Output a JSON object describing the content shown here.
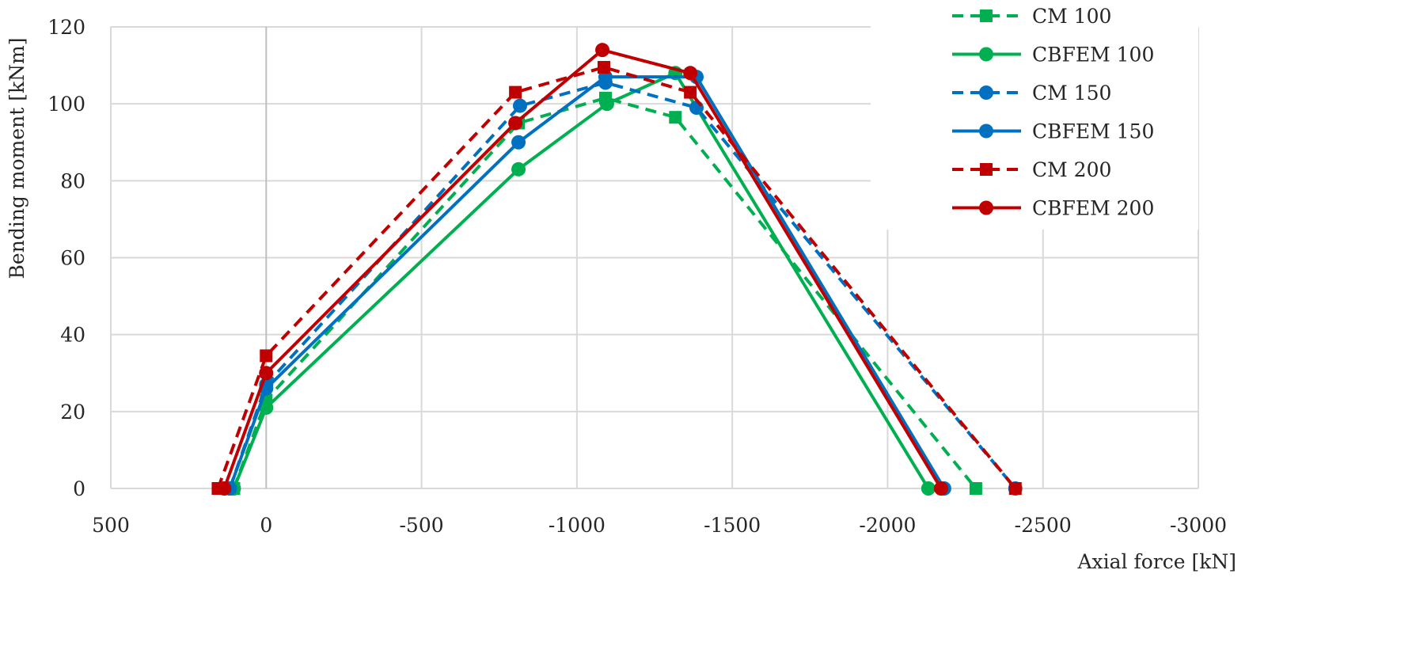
{
  "chart_data": {
    "type": "line",
    "title": "",
    "xlabel": "Axial force [kN]",
    "ylabel": "Bending moment [kNm]",
    "xlim": [
      500,
      -3000
    ],
    "ylim": [
      0,
      120
    ],
    "x_reversed": true,
    "grid": true,
    "legend_position": "top-right",
    "xticks": [
      "500",
      "0",
      "-500",
      "-1000",
      "-1500",
      "-2000",
      "-2500",
      "-3000"
    ],
    "xtick_values": [
      500,
      0,
      -500,
      -1000,
      -1500,
      -2000,
      -2500,
      -3000
    ],
    "yticks": [
      "0",
      "20",
      "40",
      "60",
      "80",
      "100",
      "120"
    ],
    "ytick_values": [
      0,
      20,
      40,
      60,
      80,
      100,
      120
    ],
    "series": [
      {
        "name": "CM 100",
        "color": "#00B050",
        "dashed": true,
        "marker": "square",
        "x": [
          104,
          0,
          -812,
          -1092,
          -1317,
          -2284
        ],
        "y": [
          0,
          23,
          95,
          101.5,
          96.5,
          0
        ]
      },
      {
        "name": "CBFEM 100",
        "color": "#00B050",
        "dashed": false,
        "marker": "circle",
        "x": [
          104,
          0,
          -812,
          -1097,
          -1317,
          -2131
        ],
        "y": [
          0,
          21,
          83,
          100,
          108,
          0
        ]
      },
      {
        "name": "CM 150",
        "color": "#0070C0",
        "dashed": true,
        "marker": "circle",
        "x": [
          117,
          0,
          -817,
          -1092,
          -1385,
          -2411
        ],
        "y": [
          0,
          27,
          99.5,
          105.5,
          99,
          0
        ]
      },
      {
        "name": "CBFEM 150",
        "color": "#0070C0",
        "dashed": false,
        "marker": "circle",
        "x": [
          117,
          0,
          -812,
          -1092,
          -1385,
          -2182
        ],
        "y": [
          0,
          26,
          90,
          107,
          107,
          0
        ]
      },
      {
        "name": "CM 200",
        "color": "#C00000",
        "dashed": true,
        "marker": "square",
        "x": [
          155,
          0,
          -802,
          -1087,
          -1365,
          -2411
        ],
        "y": [
          0,
          34.5,
          103,
          109.5,
          103,
          0
        ]
      },
      {
        "name": "CBFEM 200",
        "color": "#C00000",
        "dashed": false,
        "marker": "circle",
        "x": [
          135,
          0,
          -802,
          -1082,
          -1365,
          -2172
        ],
        "y": [
          0,
          30,
          95,
          114,
          108,
          0
        ]
      }
    ]
  }
}
